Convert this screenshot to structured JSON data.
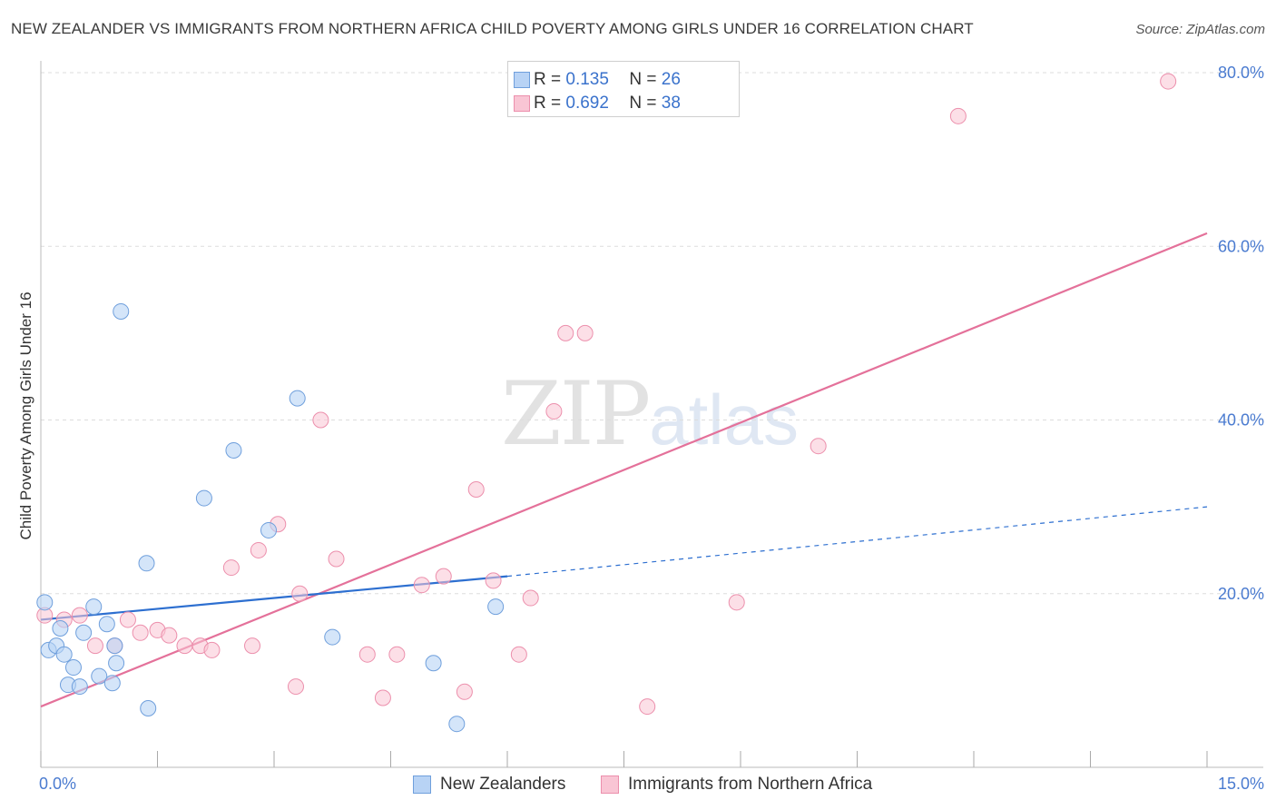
{
  "title": "NEW ZEALANDER VS IMMIGRANTS FROM NORTHERN AFRICA CHILD POVERTY AMONG GIRLS UNDER 16 CORRELATION CHART",
  "source": "Source: ZipAtlas.com",
  "watermark": {
    "zip": "ZIP",
    "atlas": "atlas"
  },
  "legend": {
    "rows": [
      {
        "r_label": "R =",
        "r_value": "0.135",
        "n_label": "N =",
        "n_value": "26"
      },
      {
        "r_label": "R =",
        "r_value": "0.692",
        "n_label": "N =",
        "n_value": "38"
      }
    ]
  },
  "bottom_legend": {
    "series1": "New Zealanders",
    "series2": "Immigrants from Northern Africa"
  },
  "colors": {
    "series1_fill": "#b8d3f5",
    "series1_stroke": "#6f9fdc",
    "series1_line": "#2d6fd0",
    "series2_fill": "#f9c5d4",
    "series2_stroke": "#ec8fac",
    "series2_line": "#e4719a"
  },
  "chart_data": {
    "type": "scatter",
    "title": "NEW ZEALANDER VS IMMIGRANTS FROM NORTHERN AFRICA CHILD POVERTY AMONG GIRLS UNDER 16 CORRELATION CHART",
    "xlabel": "",
    "ylabel": "Child Poverty Among Girls Under 16",
    "xlim": [
      0,
      15
    ],
    "ylim": [
      0,
      80
    ],
    "x_tick_labels": [
      "0.0%",
      "15.0%"
    ],
    "y_ticks": [
      20,
      40,
      60,
      80
    ],
    "y_tick_labels": [
      "20.0%",
      "40.0%",
      "60.0%",
      "80.0%"
    ],
    "grid": true,
    "series": [
      {
        "name": "New Zealanders",
        "R": 0.135,
        "N": 26,
        "points": [
          [
            0.05,
            19.0
          ],
          [
            0.1,
            13.5
          ],
          [
            0.2,
            14.0
          ],
          [
            0.25,
            16.0
          ],
          [
            0.3,
            13.0
          ],
          [
            0.35,
            9.5
          ],
          [
            0.42,
            11.5
          ],
          [
            0.5,
            9.3
          ],
          [
            0.55,
            15.5
          ],
          [
            0.68,
            18.5
          ],
          [
            0.75,
            10.5
          ],
          [
            0.85,
            16.5
          ],
          [
            0.92,
            9.7
          ],
          [
            0.95,
            14.0
          ],
          [
            0.97,
            12.0
          ],
          [
            1.03,
            52.5
          ],
          [
            1.36,
            23.5
          ],
          [
            1.38,
            6.8
          ],
          [
            2.1,
            31.0
          ],
          [
            2.48,
            36.5
          ],
          [
            2.93,
            27.3
          ],
          [
            3.3,
            42.5
          ],
          [
            3.75,
            15.0
          ],
          [
            5.05,
            12.0
          ],
          [
            5.35,
            5.0
          ],
          [
            5.85,
            18.5
          ]
        ],
        "trend": {
          "x": [
            0,
            6.0
          ],
          "y": [
            17.0,
            22.0
          ],
          "dashed_extension_to": [
            15,
            30.0
          ]
        }
      },
      {
        "name": "Immigrants from Northern Africa",
        "R": 0.692,
        "N": 38,
        "points": [
          [
            0.05,
            17.5
          ],
          [
            0.3,
            17.0
          ],
          [
            0.5,
            17.5
          ],
          [
            0.7,
            14.0
          ],
          [
            0.95,
            14.0
          ],
          [
            1.12,
            17.0
          ],
          [
            1.28,
            15.5
          ],
          [
            1.5,
            15.8
          ],
          [
            1.65,
            15.2
          ],
          [
            1.85,
            14.0
          ],
          [
            2.05,
            14.0
          ],
          [
            2.2,
            13.5
          ],
          [
            2.45,
            23.0
          ],
          [
            2.72,
            14.0
          ],
          [
            2.8,
            25.0
          ],
          [
            3.05,
            28.0
          ],
          [
            3.28,
            9.3
          ],
          [
            3.33,
            20.0
          ],
          [
            3.6,
            40.0
          ],
          [
            3.8,
            24.0
          ],
          [
            4.2,
            13.0
          ],
          [
            4.4,
            8.0
          ],
          [
            4.58,
            13.0
          ],
          [
            4.9,
            21.0
          ],
          [
            5.18,
            22.0
          ],
          [
            5.45,
            8.7
          ],
          [
            5.6,
            32.0
          ],
          [
            5.82,
            21.5
          ],
          [
            6.15,
            13.0
          ],
          [
            6.3,
            19.5
          ],
          [
            6.6,
            41.0
          ],
          [
            6.75,
            50.0
          ],
          [
            7.0,
            50.0
          ],
          [
            7.8,
            7.0
          ],
          [
            8.95,
            19.0
          ],
          [
            10.0,
            37.0
          ],
          [
            11.8,
            75.0
          ],
          [
            14.5,
            79.0
          ]
        ],
        "trend": {
          "x": [
            0,
            15
          ],
          "y": [
            7.0,
            61.5
          ]
        }
      }
    ]
  }
}
